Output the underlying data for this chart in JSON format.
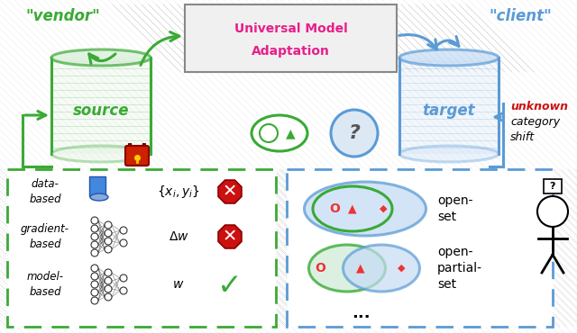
{
  "title_line1": "Universal Model",
  "title_line2": "Adaptation",
  "vendor_label": "\"vendor\"",
  "client_label": "\"client\"",
  "source_label": "source",
  "target_label": "target",
  "unknown_line1": "unknown",
  "unknown_line2": "category",
  "unknown_line3": "shift",
  "data_based": "data-\nbased",
  "gradient_based": "gradient-\nbased",
  "model_based": "model-\nbased",
  "open_set": "open-\nset",
  "open_partial_set": "open-\npartial-\nset",
  "dots": "...",
  "xi_yi": "$\\{x_i, y_i\\}$",
  "delta_w": "$\\Delta w$",
  "w": "$w$",
  "green": "#3aaa35",
  "blue": "#5b9bd5",
  "light_blue": "#c5dcf5",
  "light_green": "#d8eed8",
  "red": "#cc1111",
  "dark_red": "#8b0000",
  "magenta": "#e91e8c",
  "orange_red": "#cc2200",
  "gray_bg": "#f0f0f0",
  "hatch_color": "#cccccc"
}
